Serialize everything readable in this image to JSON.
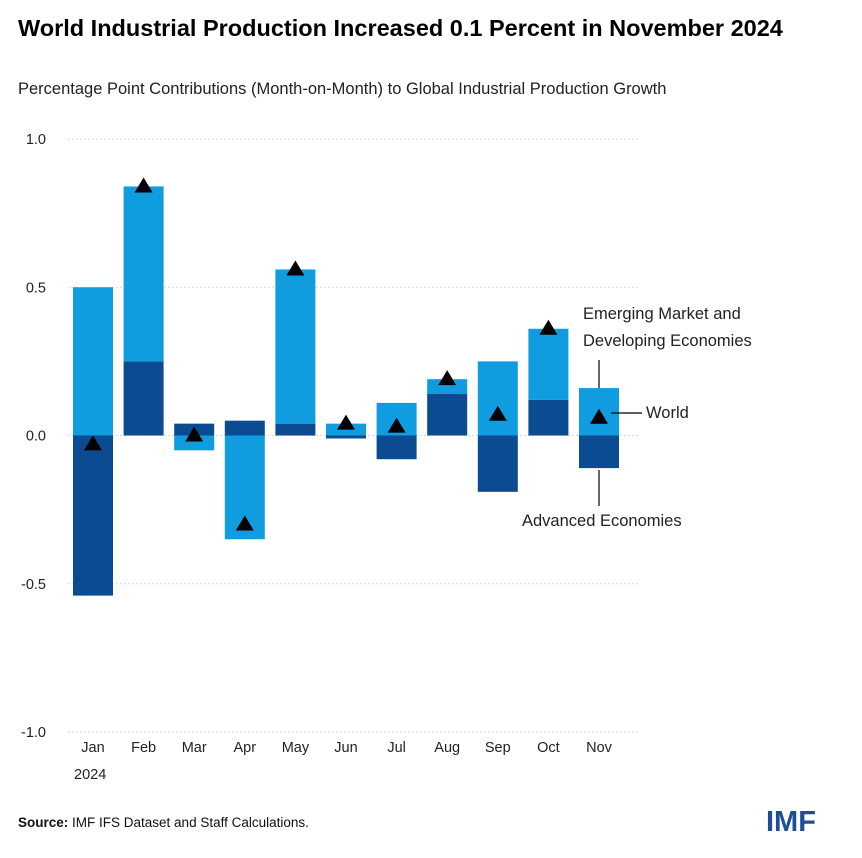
{
  "chart_title": "World Industrial Production Increased 0.1 Percent in November 2024",
  "chart_subtitle": "Percentage Point Contributions (Month-on-Month) to Global Industrial Production Growth",
  "source_label": "Source:",
  "source_text": "IMF IFS Dataset and Staff Calculations.",
  "logo_text": "IMF",
  "colors": {
    "emde": "#0f9de0",
    "advanced": "#0a4b91",
    "world": "#000000",
    "grid": "#d9d9d9"
  },
  "chart_data": {
    "type": "bar",
    "stacked": true,
    "title": "World Industrial Production Increased 0.1 Percent in November 2024",
    "subtitle": "Percentage Point Contributions (Month-on-Month) to Global Industrial Production Growth",
    "categories": [
      "Jan",
      "Feb",
      "Mar",
      "Apr",
      "May",
      "Jun",
      "Jul",
      "Aug",
      "Sep",
      "Oct",
      "Nov"
    ],
    "year_label": "2024",
    "ylim": [
      -1.0,
      1.0
    ],
    "yticks": [
      1.0,
      0.5,
      0.0,
      -0.5,
      -1.0
    ],
    "ytick_labels": [
      "1.0",
      "0.5",
      "0.0",
      "-0.5",
      "-1.0"
    ],
    "series": [
      {
        "name": "Advanced Economies",
        "kind": "bar",
        "values": [
          -0.54,
          0.25,
          0.04,
          0.05,
          0.04,
          -0.01,
          -0.08,
          0.14,
          -0.19,
          0.12,
          -0.11
        ]
      },
      {
        "name": "Emerging Market and Developing Economies",
        "kind": "bar",
        "values": [
          0.5,
          0.59,
          -0.05,
          -0.35,
          0.52,
          0.04,
          0.11,
          0.05,
          0.25,
          0.24,
          0.16
        ]
      },
      {
        "name": "World",
        "kind": "marker",
        "values": [
          -0.03,
          0.84,
          0.0,
          -0.3,
          0.56,
          0.04,
          0.03,
          0.19,
          0.07,
          0.36,
          0.06
        ]
      }
    ],
    "annotations": {
      "emde_line1": "Emerging Market and",
      "emde_line2": "Developing Economies",
      "world": "World",
      "advanced": "Advanced Economies"
    }
  }
}
